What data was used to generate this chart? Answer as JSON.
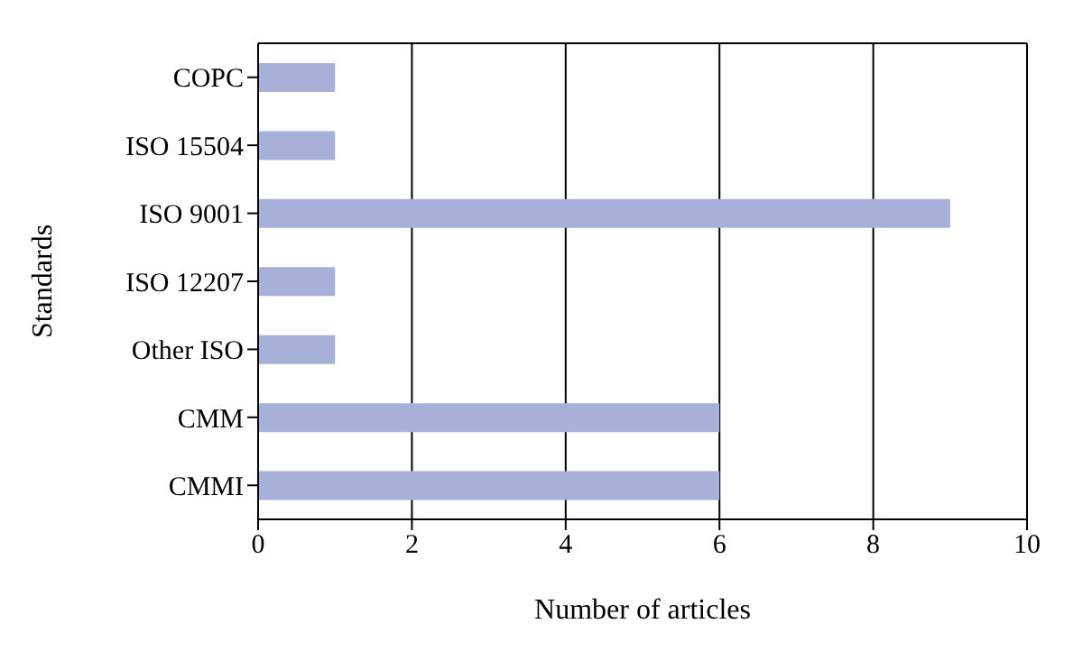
{
  "chart_data": {
    "type": "bar",
    "orientation": "horizontal",
    "xlabel": "Number of articles",
    "ylabel": "Standards",
    "categories": [
      "COPC",
      "ISO 15504",
      "ISO 9001",
      "ISO 12207",
      "Other ISO",
      "CMM",
      "CMMI"
    ],
    "values": [
      1,
      1,
      9,
      1,
      1,
      6,
      6
    ],
    "color": "#a6b0d8",
    "xlim": [
      0,
      10
    ],
    "xticks": [
      0,
      2,
      4,
      6,
      8,
      10
    ],
    "grid": "x"
  }
}
